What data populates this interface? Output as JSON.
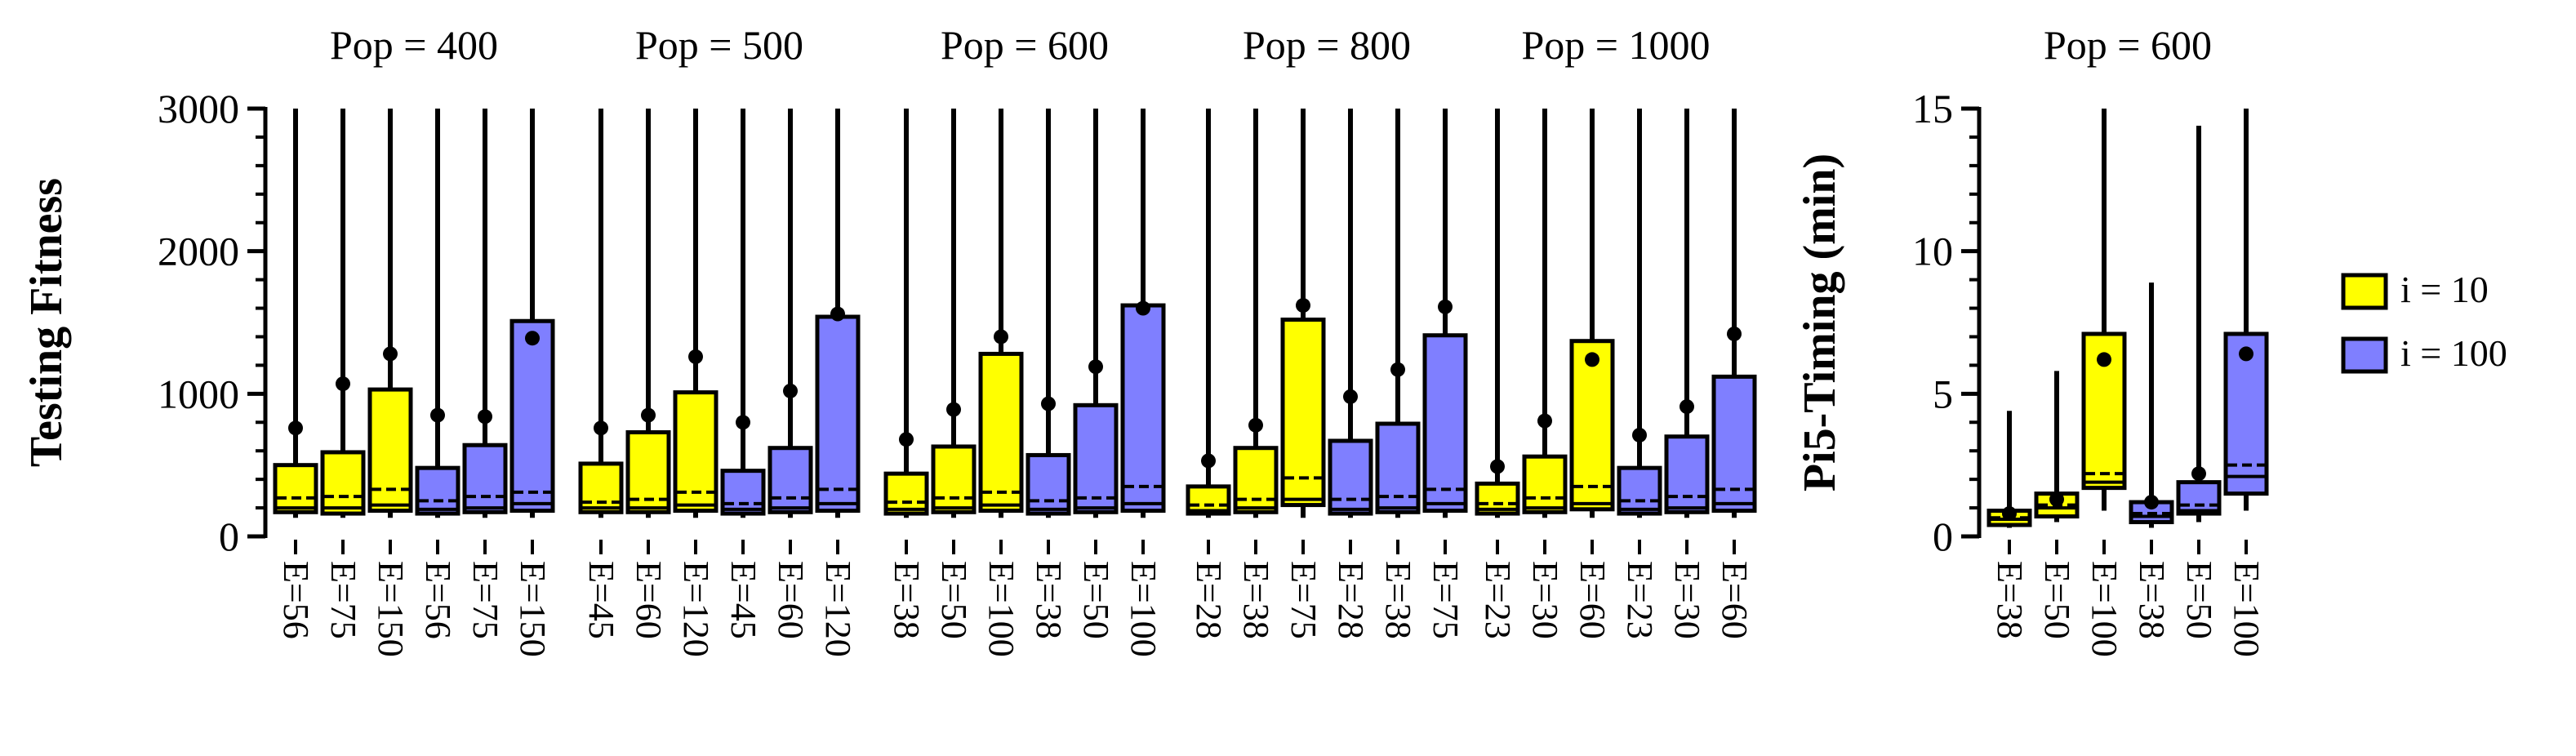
{
  "colors": {
    "i10": "#ffff00",
    "i100": "#7f7fff",
    "stroke": "#000000"
  },
  "chart_data": [
    {
      "type": "box",
      "ylabel": "Testing Fitness",
      "ylim": [
        0,
        3000
      ],
      "yticks": [
        0,
        1000,
        2000,
        3000
      ],
      "ytick_labels": [
        "0",
        "1000",
        "2000",
        "3000"
      ],
      "panels": [
        {
          "title": "Pop = 400",
          "boxes": [
            {
              "label": "E=56",
              "group": "i = 10",
              "q1": 170,
              "q3": 500,
              "median": 200,
              "mean": 270,
              "whisker_low": 130,
              "whisker_high": 3000,
              "dot": 760
            },
            {
              "label": "E=75",
              "group": "i = 10",
              "q1": 160,
              "q3": 590,
              "median": 200,
              "mean": 280,
              "whisker_low": 130,
              "whisker_high": 3000,
              "dot": 1070
            },
            {
              "label": "E=150",
              "group": "i = 10",
              "q1": 180,
              "q3": 1030,
              "median": 220,
              "mean": 330,
              "whisker_low": 130,
              "whisker_high": 3000,
              "dot": 1280
            },
            {
              "label": "E=56",
              "group": "i = 100",
              "q1": 160,
              "q3": 480,
              "median": 190,
              "mean": 250,
              "whisker_low": 130,
              "whisker_high": 3000,
              "dot": 850
            },
            {
              "label": "E=75",
              "group": "i = 100",
              "q1": 170,
              "q3": 640,
              "median": 200,
              "mean": 280,
              "whisker_low": 130,
              "whisker_high": 3000,
              "dot": 840
            },
            {
              "label": "E=150",
              "group": "i = 100",
              "q1": 180,
              "q3": 1510,
              "median": 230,
              "mean": 310,
              "whisker_low": 130,
              "whisker_high": 3000,
              "dot": 1390
            }
          ]
        },
        {
          "title": "Pop = 500",
          "boxes": [
            {
              "label": "E=45",
              "group": "i = 10",
              "q1": 170,
              "q3": 510,
              "median": 200,
              "mean": 240,
              "whisker_low": 130,
              "whisker_high": 3000,
              "dot": 760
            },
            {
              "label": "E=60",
              "group": "i = 10",
              "q1": 170,
              "q3": 730,
              "median": 200,
              "mean": 260,
              "whisker_low": 130,
              "whisker_high": 3000,
              "dot": 850
            },
            {
              "label": "E=120",
              "group": "i = 10",
              "q1": 180,
              "q3": 1010,
              "median": 220,
              "mean": 310,
              "whisker_low": 130,
              "whisker_high": 3000,
              "dot": 1260
            },
            {
              "label": "E=45",
              "group": "i = 100",
              "q1": 160,
              "q3": 460,
              "median": 190,
              "mean": 230,
              "whisker_low": 130,
              "whisker_high": 3000,
              "dot": 800
            },
            {
              "label": "E=60",
              "group": "i = 100",
              "q1": 170,
              "q3": 620,
              "median": 200,
              "mean": 270,
              "whisker_low": 130,
              "whisker_high": 3000,
              "dot": 1020
            },
            {
              "label": "E=120",
              "group": "i = 100",
              "q1": 180,
              "q3": 1540,
              "median": 230,
              "mean": 330,
              "whisker_low": 130,
              "whisker_high": 3000,
              "dot": 1560
            }
          ]
        },
        {
          "title": "Pop = 600",
          "boxes": [
            {
              "label": "E=38",
              "group": "i = 10",
              "q1": 160,
              "q3": 440,
              "median": 190,
              "mean": 240,
              "whisker_low": 130,
              "whisker_high": 3000,
              "dot": 680
            },
            {
              "label": "E=50",
              "group": "i = 10",
              "q1": 170,
              "q3": 630,
              "median": 200,
              "mean": 270,
              "whisker_low": 130,
              "whisker_high": 3000,
              "dot": 890
            },
            {
              "label": "E=100",
              "group": "i = 10",
              "q1": 180,
              "q3": 1280,
              "median": 220,
              "mean": 310,
              "whisker_low": 130,
              "whisker_high": 3000,
              "dot": 1400
            },
            {
              "label": "E=38",
              "group": "i = 100",
              "q1": 160,
              "q3": 570,
              "median": 190,
              "mean": 250,
              "whisker_low": 130,
              "whisker_high": 3000,
              "dot": 930
            },
            {
              "label": "E=50",
              "group": "i = 100",
              "q1": 170,
              "q3": 920,
              "median": 200,
              "mean": 270,
              "whisker_low": 130,
              "whisker_high": 3000,
              "dot": 1190
            },
            {
              "label": "E=100",
              "group": "i = 100",
              "q1": 180,
              "q3": 1620,
              "median": 230,
              "mean": 350,
              "whisker_low": 130,
              "whisker_high": 3000,
              "dot": 1600
            }
          ]
        },
        {
          "title": "Pop = 800",
          "boxes": [
            {
              "label": "E=28",
              "group": "i = 10",
              "q1": 160,
              "q3": 350,
              "median": 180,
              "mean": 220,
              "whisker_low": 130,
              "whisker_high": 3000,
              "dot": 530
            },
            {
              "label": "E=38",
              "group": "i = 10",
              "q1": 170,
              "q3": 620,
              "median": 200,
              "mean": 260,
              "whisker_low": 130,
              "whisker_high": 3000,
              "dot": 780
            },
            {
              "label": "E=75",
              "group": "i = 10",
              "q1": 220,
              "q3": 1520,
              "median": 260,
              "mean": 410,
              "whisker_low": 130,
              "whisker_high": 3000,
              "dot": 1620
            },
            {
              "label": "E=28",
              "group": "i = 100",
              "q1": 160,
              "q3": 670,
              "median": 190,
              "mean": 260,
              "whisker_low": 130,
              "whisker_high": 3000,
              "dot": 980
            },
            {
              "label": "E=38",
              "group": "i = 100",
              "q1": 170,
              "q3": 790,
              "median": 200,
              "mean": 280,
              "whisker_low": 130,
              "whisker_high": 3000,
              "dot": 1170
            },
            {
              "label": "E=75",
              "group": "i = 100",
              "q1": 180,
              "q3": 1410,
              "median": 230,
              "mean": 330,
              "whisker_low": 130,
              "whisker_high": 3000,
              "dot": 1610
            }
          ]
        },
        {
          "title": "Pop = 1000",
          "boxes": [
            {
              "label": "E=23",
              "group": "i = 10",
              "q1": 160,
              "q3": 370,
              "median": 190,
              "mean": 230,
              "whisker_low": 130,
              "whisker_high": 3000,
              "dot": 490
            },
            {
              "label": "E=30",
              "group": "i = 10",
              "q1": 170,
              "q3": 560,
              "median": 200,
              "mean": 270,
              "whisker_low": 130,
              "whisker_high": 3000,
              "dot": 810
            },
            {
              "label": "E=60",
              "group": "i = 10",
              "q1": 190,
              "q3": 1370,
              "median": 230,
              "mean": 350,
              "whisker_low": 130,
              "whisker_high": 3000,
              "dot": 1240
            },
            {
              "label": "E=23",
              "group": "i = 100",
              "q1": 160,
              "q3": 480,
              "median": 190,
              "mean": 250,
              "whisker_low": 130,
              "whisker_high": 3000,
              "dot": 710
            },
            {
              "label": "E=30",
              "group": "i = 100",
              "q1": 170,
              "q3": 700,
              "median": 200,
              "mean": 280,
              "whisker_low": 130,
              "whisker_high": 3000,
              "dot": 910
            },
            {
              "label": "E=60",
              "group": "i = 100",
              "q1": 180,
              "q3": 1120,
              "median": 230,
              "mean": 330,
              "whisker_low": 130,
              "whisker_high": 3000,
              "dot": 1420
            }
          ]
        }
      ]
    },
    {
      "type": "box",
      "ylabel": "Pi5-Timing (min)",
      "ylim": [
        0,
        15
      ],
      "yticks": [
        0,
        5,
        10,
        15
      ],
      "ytick_labels": [
        "0",
        "5",
        "10",
        "15"
      ],
      "panels": [
        {
          "title": "Pop = 600",
          "boxes": [
            {
              "label": "E=38",
              "group": "i = 10",
              "q1": 0.4,
              "q3": 0.9,
              "median": 0.6,
              "mean": 0.65,
              "whisker_low": 0.3,
              "whisker_high": 4.4,
              "dot": 0.8
            },
            {
              "label": "E=50",
              "group": "i = 10",
              "q1": 0.7,
              "q3": 1.5,
              "median": 1.0,
              "mean": 1.1,
              "whisker_low": 0.5,
              "whisker_high": 5.8,
              "dot": 1.3
            },
            {
              "label": "E=100",
              "group": "i = 10",
              "q1": 1.7,
              "q3": 7.1,
              "median": 1.9,
              "mean": 2.2,
              "whisker_low": 0.9,
              "whisker_high": 15,
              "dot": 6.2
            },
            {
              "label": "E=38",
              "group": "i = 100",
              "q1": 0.5,
              "q3": 1.2,
              "median": 0.7,
              "mean": 0.8,
              "whisker_low": 0.3,
              "whisker_high": 8.9,
              "dot": 1.2
            },
            {
              "label": "E=50",
              "group": "i = 100",
              "q1": 0.8,
              "q3": 1.9,
              "median": 0.9,
              "mean": 1.1,
              "whisker_low": 0.5,
              "whisker_high": 14.4,
              "dot": 2.2
            },
            {
              "label": "E=100",
              "group": "i = 100",
              "q1": 1.5,
              "q3": 7.1,
              "median": 2.1,
              "mean": 2.5,
              "whisker_low": 0.9,
              "whisker_high": 15,
              "dot": 6.4
            }
          ]
        }
      ]
    }
  ],
  "legend": {
    "items": [
      {
        "label": "i = 10",
        "color": "#ffff00"
      },
      {
        "label": "i = 100",
        "color": "#7f7fff"
      }
    ]
  }
}
